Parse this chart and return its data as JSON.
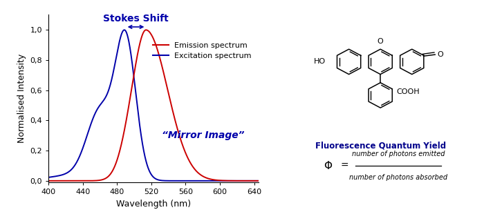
{
  "excitation_peak": 490,
  "emission_peak": 514,
  "excitation_color": "#CC0000",
  "emission_color": "#CC0000",
  "blue_color": "#0000AA",
  "red_color": "#CC0000",
  "xlabel": "Wavelength (nm)",
  "ylabel": "Normalised Intensity",
  "xlim": [
    400,
    645
  ],
  "ylim": [
    -0.01,
    1.1
  ],
  "yticks": [
    0.0,
    0.2,
    0.4,
    0.6,
    0.8,
    1.0
  ],
  "xticks": [
    400,
    440,
    480,
    520,
    560,
    600,
    640
  ],
  "stokes_label": "Stokes Shift",
  "mirror_label": "“Mirror Image”",
  "legend_emission": "Emission spectrum",
  "legend_excitation": "Excitation spectrum",
  "background_color": "#ffffff"
}
